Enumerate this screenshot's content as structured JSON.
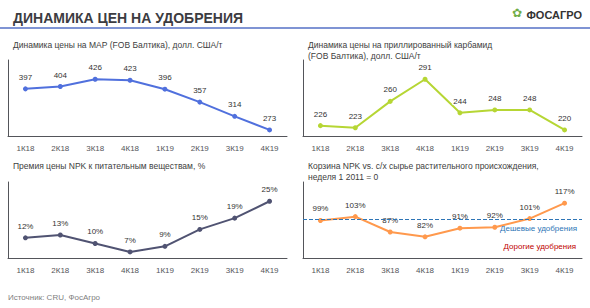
{
  "title": "ДИНАМИКА ЦЕН НА УДОБРЕНИЯ",
  "annotations": [
    {
      "text": "✿",
      "color": "#70ad47"
    },
    {
      "text": "ФОСАГРО"
    },
    {
      "text": "Источник: CRU, ФосАгро"
    }
  ],
  "chart_data": [
    {
      "type": "line",
      "title": "Динамика цены на МАР (FOB Балтика), долл. США/т",
      "categories": [
        "1К18",
        "2К18",
        "3К18",
        "4К18",
        "1К19",
        "2К19",
        "3К19",
        "4К19"
      ],
      "values": [
        397,
        404,
        426,
        423,
        396,
        357,
        314,
        273
      ],
      "ylim": [
        254.64,
        484.14
      ],
      "data_labels": true,
      "tick_labels": "x",
      "grid": false
    },
    {
      "type": "line",
      "title": "Динамика цены на приллированный карбамид\n(FOB Балтика), долл. США/т",
      "categories": [
        "1К18",
        "2К18",
        "3К18",
        "4К18",
        "1К19",
        "2К19",
        "3К19",
        "4К19"
      ],
      "values": [
        226,
        223,
        260,
        291,
        244,
        248,
        248,
        220
      ],
      "ylim": [
        211.48,
        317.98
      ],
      "data_labels": true,
      "tick_labels": "x",
      "grid": false
    },
    {
      "type": "line",
      "title": "Премия цены NPK к питательным веществам, %",
      "categories": [
        "1К18",
        "2К18",
        "3К18",
        "4К18",
        "1К19",
        "2К19",
        "3К19",
        "4К19"
      ],
      "values": [
        12,
        13,
        10,
        7,
        9,
        15,
        19,
        25
      ],
      "value_labels": [
        "12%",
        "13%",
        "10%",
        "7%",
        "9%",
        "15%",
        "19%",
        "25%"
      ],
      "ylim": [
        4.84,
        31.84
      ],
      "data_labels": true,
      "tick_labels": "x",
      "grid": false
    },
    {
      "type": "line",
      "title": "Корзина NPK vs. с/х сырье растительного происхождения,\nнеделя 1 2011 = 0",
      "categories": [
        "1К18",
        "2К18",
        "3К18",
        "4К18",
        "1К19",
        "2К19",
        "3К19",
        "4К19"
      ],
      "values": [
        99,
        103,
        87,
        82,
        91,
        92,
        101,
        117
      ],
      "value_labels": [
        "99%",
        "103%",
        "87%",
        "82%",
        "91%",
        "92%",
        "101%",
        "117%"
      ],
      "ylim": [
        60,
        139
      ],
      "reference": {
        "value": 100,
        "label": "Дешевые удобрения",
        "color": "#2e75b6",
        "line_style": "dashed"
      },
      "annotations": [
        {
          "text": "Дорогие удобрения",
          "color": "#c00000"
        }
      ],
      "data_labels": true,
      "tick_labels": "x",
      "grid": false
    }
  ]
}
